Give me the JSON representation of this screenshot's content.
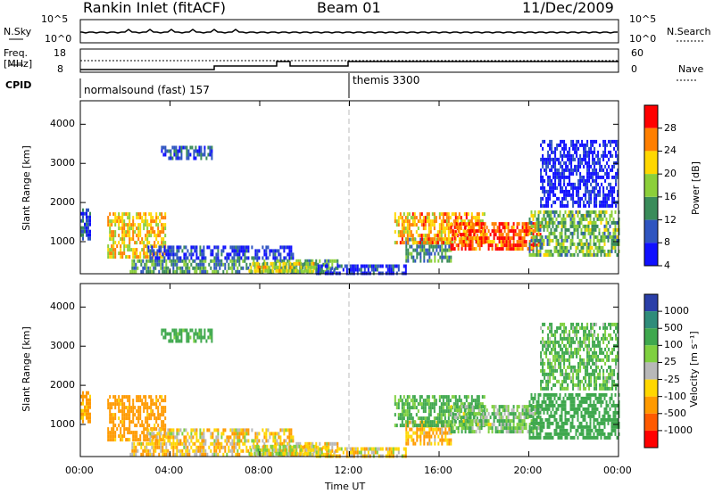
{
  "header": {
    "station": "Rankin Inlet (fitACF)",
    "beam": "Beam 01",
    "date": "11/Dec/2009"
  },
  "params": {
    "nsky_label": "N.Sky",
    "nsearch_label": "N.Search",
    "freq_label_1": "Freq.",
    "freq_label_2": "[MHz]",
    "nave_label": "Nave",
    "cpid_label": "CPID",
    "nsky_ticks": [
      "10^5",
      "10^0"
    ],
    "nsearch_ticks": [
      "10^5",
      "10^0"
    ],
    "freq_ticks": [
      "18",
      "8"
    ],
    "nave_ticks": [
      "60",
      "0"
    ],
    "cpid_segments": [
      {
        "start_h": 0,
        "label": "normalsound (fast) 157"
      },
      {
        "start_h": 12,
        "label": "themis 3300"
      }
    ]
  },
  "chart_data": [
    {
      "type": "heatmap",
      "name": "power",
      "xlabel": "Time UT",
      "ylabel": "Slant Range [km]",
      "xlim": [
        0,
        24
      ],
      "ylim": [
        180,
        4600
      ],
      "xticks": [
        "00:00",
        "04:00",
        "08:00",
        "12:00",
        "16:00",
        "20:00",
        "00:00"
      ],
      "yticks": [
        "1000",
        "2000",
        "3000",
        "4000"
      ],
      "colorbar": {
        "label": "Power [dB]",
        "ticks": [
          "28",
          "24",
          "20",
          "16",
          "12",
          "8",
          "4"
        ],
        "colors": [
          "#ff0000",
          "#ff7f00",
          "#ffd700",
          "#8ccf3a",
          "#3a8c5a",
          "#2f55c0",
          "#1010ff"
        ]
      },
      "regions": [
        {
          "t": [
            0.0,
            0.4
          ],
          "r": [
            1100,
            1850
          ],
          "level": 10
        },
        {
          "t": [
            1.2,
            3.8
          ],
          "r": [
            650,
            1750
          ],
          "level": 22
        },
        {
          "t": [
            3.6,
            5.9
          ],
          "r": [
            3100,
            3450
          ],
          "level": 10
        },
        {
          "t": [
            2.2,
            11.5
          ],
          "r": [
            220,
            550
          ],
          "level": 14
        },
        {
          "t": [
            3.0,
            9.5
          ],
          "r": [
            550,
            900
          ],
          "level": 8
        },
        {
          "t": [
            7.5,
            10.5
          ],
          "r": [
            220,
            480
          ],
          "level": 20
        },
        {
          "t": [
            10.5,
            14.5
          ],
          "r": [
            220,
            420
          ],
          "level": 8
        },
        {
          "t": [
            14.5,
            16.5
          ],
          "r": [
            550,
            1100
          ],
          "level": 14
        },
        {
          "t": [
            14.0,
            18.0
          ],
          "r": [
            950,
            1750
          ],
          "level": 24
        },
        {
          "t": [
            16.5,
            20.5
          ],
          "r": [
            800,
            1500
          ],
          "level": 28
        },
        {
          "t": [
            20.0,
            24.0
          ],
          "r": [
            700,
            1800
          ],
          "level": 16
        },
        {
          "t": [
            20.5,
            24.0
          ],
          "r": [
            1900,
            3600
          ],
          "level": 6
        }
      ]
    },
    {
      "type": "heatmap",
      "name": "velocity",
      "xlabel": "Time UT",
      "ylabel": "Slant Range [km]",
      "xlim": [
        0,
        24
      ],
      "ylim": [
        180,
        4600
      ],
      "xticks": [
        "00:00",
        "04:00",
        "08:00",
        "12:00",
        "16:00",
        "20:00",
        "00:00"
      ],
      "yticks": [
        "1000",
        "2000",
        "3000",
        "4000"
      ],
      "colorbar": {
        "label": "Velocity [m s⁻¹]",
        "ticks": [
          "1000",
          "500",
          "100",
          "25",
          "-25",
          "-100",
          "-500",
          "-1000"
        ],
        "colors": [
          "#2a3fa8",
          "#2f8c7a",
          "#3fa84e",
          "#7fd040",
          "#b8b8b8",
          "#ffd700",
          "#ff9a00",
          "#ff5a00",
          "#ff0000"
        ]
      },
      "regions": [
        {
          "t": [
            0.0,
            0.4
          ],
          "r": [
            1100,
            1850
          ],
          "level": -150
        },
        {
          "t": [
            1.2,
            3.8
          ],
          "r": [
            650,
            1750
          ],
          "level": -200
        },
        {
          "t": [
            3.6,
            5.9
          ],
          "r": [
            3100,
            3450
          ],
          "level": 200
        },
        {
          "t": [
            2.2,
            11.5
          ],
          "r": [
            220,
            550
          ],
          "level": -80
        },
        {
          "t": [
            3.0,
            9.5
          ],
          "r": [
            550,
            900
          ],
          "level": -60
        },
        {
          "t": [
            7.5,
            10.5
          ],
          "r": [
            220,
            480
          ],
          "level": 0
        },
        {
          "t": [
            10.5,
            14.5
          ],
          "r": [
            220,
            420
          ],
          "level": -50
        },
        {
          "t": [
            14.5,
            16.5
          ],
          "r": [
            550,
            1100
          ],
          "level": -100
        },
        {
          "t": [
            14.0,
            18.0
          ],
          "r": [
            950,
            1750
          ],
          "level": 150
        },
        {
          "t": [
            16.5,
            20.5
          ],
          "r": [
            800,
            1500
          ],
          "level": 80
        },
        {
          "t": [
            20.0,
            24.0
          ],
          "r": [
            700,
            1800
          ],
          "level": 300
        },
        {
          "t": [
            20.5,
            24.0
          ],
          "r": [
            1900,
            3600
          ],
          "level": 120
        }
      ]
    }
  ]
}
